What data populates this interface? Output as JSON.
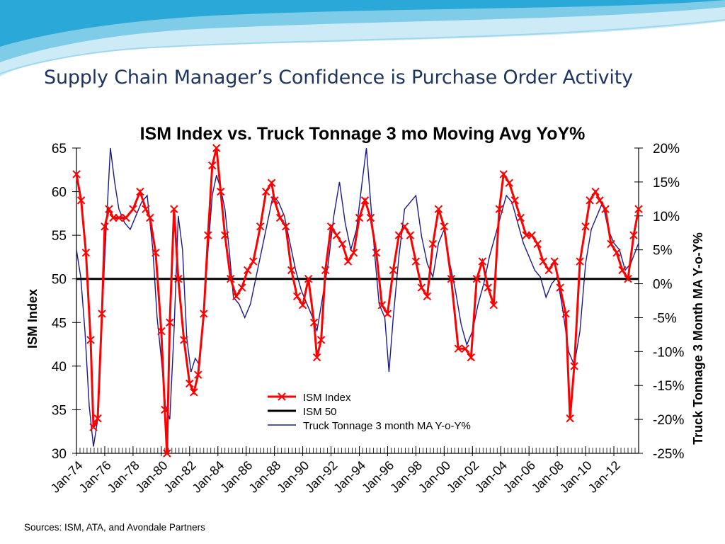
{
  "slide": {
    "title": "Supply Chain Manager’s Confidence is Purchase Order Activity",
    "sources": "Sources: ISM, ATA, and Avondale Partners"
  },
  "colors": {
    "ism": "#ff0000",
    "ism50": "#000000",
    "truck": "#1a1a8c",
    "title": "#1f3560",
    "wave_dark": "#2aa8d8",
    "wave_light": "#bfe6f4"
  },
  "chart_data": {
    "type": "line",
    "title": "ISM Index vs. Truck Tonnage 3 mo Moving Avg YoY%",
    "ylabel": "ISM Index",
    "y2label": "Truck Tonnage 3 Month MA Y-o-Y%",
    "ylim": [
      30,
      65
    ],
    "y2lim": [
      -0.25,
      0.2
    ],
    "xlim": [
      1974.0,
      2013.75
    ],
    "yticks": [
      "30",
      "35",
      "40",
      "45",
      "50",
      "55",
      "60",
      "65"
    ],
    "y2ticks": [
      "-25%",
      "-20%",
      "-15%",
      "-10%",
      "-5%",
      "0%",
      "5%",
      "10%",
      "15%",
      "20%"
    ],
    "xticks": [
      "Jan-74",
      "Jan-76",
      "Jan-78",
      "Jan-80",
      "Jan-82",
      "Jan-84",
      "Jan-86",
      "Jan-88",
      "Jan-90",
      "Jan-92",
      "Jan-94",
      "Jan-96",
      "Jan-98",
      "Jan-00",
      "Jan-02",
      "Jan-04",
      "Jan-06",
      "Jan-08",
      "Jan-10",
      "Jan-12"
    ],
    "grid": false,
    "legend_position": "bottom-center",
    "series": [
      {
        "name": "ISM Index",
        "axis": "left",
        "marker": "x",
        "x": [
          1974.0,
          1974.33,
          1974.67,
          1975.0,
          1975.2,
          1975.5,
          1975.8,
          1976.0,
          1976.3,
          1976.6,
          1977.0,
          1977.5,
          1978.0,
          1978.5,
          1978.9,
          1979.2,
          1979.6,
          1980.0,
          1980.25,
          1980.4,
          1980.6,
          1980.9,
          1981.2,
          1981.6,
          1982.0,
          1982.3,
          1982.6,
          1983.0,
          1983.3,
          1983.6,
          1983.9,
          1984.2,
          1984.5,
          1984.9,
          1985.3,
          1985.7,
          1986.1,
          1986.5,
          1987.0,
          1987.4,
          1987.8,
          1988.0,
          1988.4,
          1988.8,
          1989.2,
          1989.6,
          1990.0,
          1990.4,
          1990.8,
          1991.0,
          1991.3,
          1991.6,
          1992.0,
          1992.4,
          1992.8,
          1993.2,
          1993.6,
          1994.0,
          1994.4,
          1994.8,
          1995.2,
          1995.6,
          1996.0,
          1996.4,
          1996.8,
          1997.2,
          1997.6,
          1998.0,
          1998.4,
          1998.8,
          1999.2,
          1999.6,
          2000.0,
          2000.5,
          2001.0,
          2001.5,
          2001.9,
          2002.3,
          2002.7,
          2003.1,
          2003.5,
          2003.9,
          2004.2,
          2004.6,
          2005.0,
          2005.4,
          2005.8,
          2006.2,
          2006.6,
          2007.0,
          2007.4,
          2007.8,
          2008.2,
          2008.6,
          2008.9,
          2009.2,
          2009.6,
          2010.0,
          2010.3,
          2010.7,
          2011.0,
          2011.4,
          2011.8,
          2012.2,
          2012.6,
          2013.0,
          2013.4,
          2013.75
        ],
        "y": [
          62,
          59,
          53,
          43,
          33,
          34,
          46,
          56,
          58,
          57,
          57,
          57,
          58,
          60,
          58,
          57,
          53,
          44,
          35,
          30,
          45,
          58,
          50,
          43,
          38,
          37,
          39,
          46,
          55,
          63,
          65,
          60,
          55,
          50,
          48,
          49,
          51,
          52,
          56,
          60,
          61,
          59,
          57,
          56,
          51,
          48,
          47,
          50,
          45,
          41,
          43,
          51,
          56,
          55,
          54,
          52,
          53,
          57,
          59,
          57,
          53,
          47,
          46,
          51,
          55,
          56,
          55,
          52,
          49,
          48,
          54,
          58,
          56,
          50,
          42,
          42,
          41,
          50,
          52,
          49,
          47,
          58,
          62,
          61,
          59,
          57,
          55,
          55,
          54,
          52,
          51,
          52,
          49,
          46,
          34,
          40,
          52,
          56,
          59,
          60,
          59,
          58,
          54,
          53,
          51,
          50,
          55,
          58
        ]
      },
      {
        "name": "ISM 50",
        "axis": "left",
        "x": [
          1974.0,
          2013.75
        ],
        "y": [
          50,
          50
        ]
      },
      {
        "name": "Truck Tonnage 3 month MA Y-o-Y%",
        "axis": "right",
        "x": [
          1974.0,
          1974.3,
          1974.6,
          1974.9,
          1975.2,
          1975.5,
          1975.8,
          1976.1,
          1976.4,
          1976.7,
          1977.0,
          1977.4,
          1977.8,
          1978.2,
          1978.6,
          1979.0,
          1979.4,
          1979.7,
          1980.0,
          1980.3,
          1980.6,
          1980.9,
          1981.2,
          1981.5,
          1981.8,
          1982.1,
          1982.4,
          1982.7,
          1983.0,
          1983.3,
          1983.6,
          1983.9,
          1984.2,
          1984.5,
          1984.8,
          1985.1,
          1985.5,
          1985.9,
          1986.3,
          1986.7,
          1987.1,
          1987.5,
          1987.9,
          1988.3,
          1988.7,
          1989.1,
          1989.5,
          1989.9,
          1990.3,
          1990.7,
          1991.0,
          1991.4,
          1991.8,
          1992.2,
          1992.6,
          1993.0,
          1993.4,
          1993.8,
          1994.2,
          1994.5,
          1994.8,
          1995.1,
          1995.4,
          1995.8,
          1996.1,
          1996.4,
          1996.8,
          1997.2,
          1997.6,
          1998.0,
          1998.4,
          1998.8,
          1999.2,
          1999.6,
          2000.0,
          2000.4,
          2000.8,
          2001.2,
          2001.6,
          2002.0,
          2002.4,
          2002.8,
          2003.2,
          2003.6,
          2004.0,
          2004.4,
          2004.8,
          2005.2,
          2005.6,
          2006.0,
          2006.4,
          2006.8,
          2007.2,
          2007.6,
          2008.0,
          2008.4,
          2008.8,
          2009.2,
          2009.6,
          2010.0,
          2010.4,
          2010.8,
          2011.2,
          2011.6,
          2012.0,
          2012.4,
          2012.8,
          2013.2,
          2013.75
        ],
        "y": [
          0.05,
          0.01,
          -0.07,
          -0.18,
          -0.24,
          -0.2,
          -0.05,
          0.08,
          0.2,
          0.15,
          0.11,
          0.09,
          0.08,
          0.1,
          0.12,
          0.13,
          0.05,
          -0.05,
          -0.11,
          -0.18,
          -0.2,
          -0.07,
          0.1,
          0.05,
          -0.08,
          -0.13,
          -0.11,
          -0.12,
          -0.05,
          0.05,
          0.13,
          0.16,
          0.14,
          0.11,
          0.05,
          -0.02,
          -0.03,
          -0.05,
          -0.03,
          0.01,
          0.05,
          0.09,
          0.13,
          0.12,
          0.1,
          0.06,
          0.02,
          -0.01,
          -0.03,
          -0.05,
          -0.07,
          -0.02,
          0.03,
          0.1,
          0.15,
          0.09,
          0.05,
          0.08,
          0.15,
          0.2,
          0.12,
          0.04,
          -0.03,
          -0.05,
          -0.13,
          -0.05,
          0.04,
          0.11,
          0.12,
          0.13,
          0.07,
          0.03,
          0.01,
          0.06,
          0.08,
          0.03,
          -0.01,
          -0.06,
          -0.09,
          -0.07,
          -0.03,
          0.0,
          0.04,
          0.07,
          0.1,
          0.13,
          0.12,
          0.09,
          0.06,
          0.04,
          0.02,
          0.01,
          -0.02,
          0.0,
          0.01,
          -0.04,
          -0.1,
          -0.12,
          -0.07,
          0.03,
          0.08,
          0.1,
          0.12,
          0.08,
          0.06,
          0.05,
          0.02,
          0.03,
          0.06
        ]
      }
    ]
  }
}
